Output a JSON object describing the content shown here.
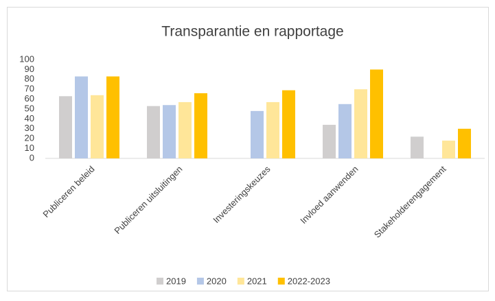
{
  "chart_data": {
    "type": "bar",
    "title": "Transparantie en rapportage",
    "categories": [
      "Publiceren beleid",
      "Publiceren uitsluitingen",
      "Investeringskeuzes",
      "Invloed aanwenden",
      "Stakeholderengagement"
    ],
    "series": [
      {
        "name": "2019",
        "color": "#d0cece",
        "values": [
          63,
          53,
          null,
          34,
          22
        ]
      },
      {
        "name": "2020",
        "color": "#b4c7e7",
        "values": [
          83,
          54,
          48,
          55,
          null
        ]
      },
      {
        "name": "2021",
        "color": "#ffe699",
        "values": [
          64,
          57,
          57,
          70,
          18
        ]
      },
      {
        "name": "2022-2023",
        "color": "#ffc000",
        "values": [
          83,
          66,
          69,
          90,
          30
        ]
      }
    ],
    "ylim": [
      0,
      100
    ],
    "yticks": [
      0,
      10,
      20,
      30,
      40,
      50,
      60,
      70,
      80,
      90,
      100
    ],
    "grid": false,
    "legend": "bottom"
  }
}
